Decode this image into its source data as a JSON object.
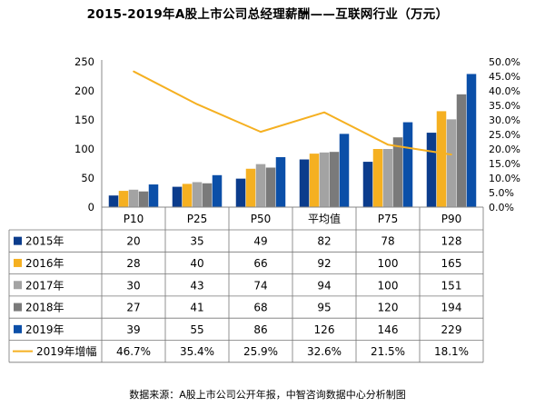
{
  "title": "2015-2019年A股上市公司总经理薪酬——互联网行业（万元）",
  "source": "数据来源：A股上市公司公开年报，中智咨询数据中心分析制图",
  "chart_data": {
    "type": "bar",
    "categories": [
      "P10",
      "P25",
      "P50",
      "平均值",
      "P75",
      "P90"
    ],
    "series": [
      {
        "name": "2015年",
        "values": [
          20,
          35,
          49,
          82,
          78,
          128
        ],
        "labels": [
          "20",
          "35",
          "49",
          "82",
          "78",
          "128"
        ],
        "color": "#0b3c8c"
      },
      {
        "name": "2016年",
        "values": [
          28,
          40,
          66,
          92,
          100,
          165
        ],
        "labels": [
          "28",
          "40",
          "66",
          "92",
          "100",
          "165"
        ],
        "color": "#f5b021"
      },
      {
        "name": "2017年",
        "values": [
          30,
          43,
          74,
          94,
          100,
          151
        ],
        "labels": [
          "30",
          "43",
          "74",
          "94",
          "100",
          "151"
        ],
        "color": "#a3a3a3"
      },
      {
        "name": "2018年",
        "values": [
          27,
          41,
          68,
          95,
          120,
          194
        ],
        "labels": [
          "27",
          "41",
          "68",
          "95",
          "120",
          "194"
        ],
        "color": "#7a7a7a"
      },
      {
        "name": "2019年",
        "values": [
          39,
          55,
          86,
          126,
          146,
          229
        ],
        "labels": [
          "39",
          "55",
          "86",
          "126",
          "146",
          "229"
        ],
        "color": "#0b4fa8"
      }
    ],
    "line_series": {
      "name": "2019年增幅",
      "values": [
        46.7,
        35.4,
        25.9,
        32.6,
        21.5,
        18.1
      ],
      "labels": [
        "46.7%",
        "35.4%",
        "25.9%",
        "32.6%",
        "21.5%",
        "18.1%"
      ],
      "color": "#f5b021",
      "axis": "right"
    },
    "ylim": [
      0,
      250
    ],
    "yticks": [
      0,
      50,
      100,
      150,
      200,
      250
    ],
    "y2lim": [
      0,
      50
    ],
    "y2ticks": [
      "0.0%",
      "5.0%",
      "10.0%",
      "15.0%",
      "20.0%",
      "25.0%",
      "30.0%",
      "35.0%",
      "40.0%",
      "45.0%",
      "50.0%"
    ],
    "grid": false,
    "legend": "data table"
  }
}
